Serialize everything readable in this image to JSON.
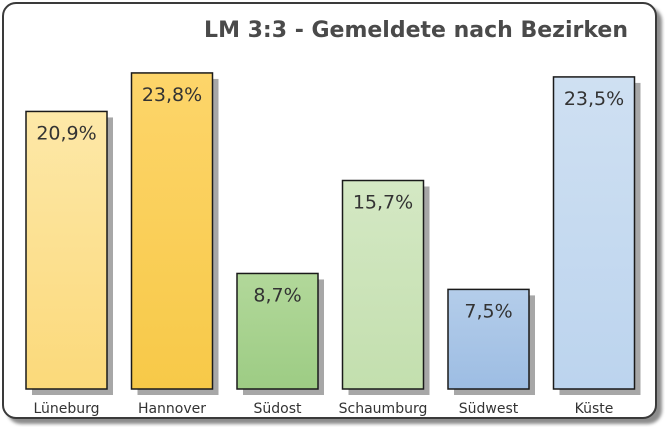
{
  "chart_data": {
    "type": "bar",
    "title": "LM 3:3 - Gemeldete nach Bezirken",
    "xlabel": "",
    "ylabel": "",
    "categories": [
      "Lüneburg",
      "Hannover",
      "Südost",
      "Schaumburg",
      "Südwest",
      "Küste"
    ],
    "values": [
      20.9,
      23.8,
      8.7,
      15.7,
      7.5,
      23.5
    ],
    "value_labels": [
      "20,9%",
      "23,8%",
      "8,7%",
      "15,7%",
      "7,5%",
      "23,5%"
    ],
    "ylim": [
      0,
      25
    ],
    "grid": false,
    "legend": "none",
    "colors": [
      {
        "top": "#fde8a8",
        "bottom": "#fbd97a"
      },
      {
        "top": "#fdd56a",
        "bottom": "#f7c948"
      },
      {
        "top": "#b2d89a",
        "bottom": "#9dcc84"
      },
      {
        "top": "#d4e8c4",
        "bottom": "#c3dfae"
      },
      {
        "top": "#b4cdea",
        "bottom": "#9dbde3"
      },
      {
        "top": "#cfe0f2",
        "bottom": "#bcd4ee"
      }
    ],
    "bar_border_color": "#1a1a1a",
    "shadow_color": "#8a8a8a"
  }
}
